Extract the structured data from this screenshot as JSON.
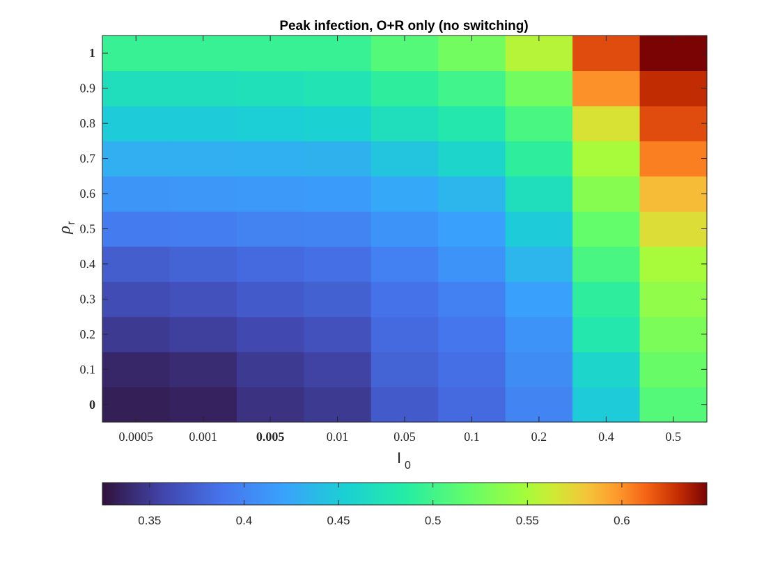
{
  "chart_data": {
    "type": "heatmap",
    "title": "Peak infection, O+R only (no switching)",
    "xlabel": {
      "main": "I",
      "sub": "0"
    },
    "ylabel": {
      "main": "ρ",
      "sub": "r"
    },
    "x_categories": [
      "0.0005",
      "0.001",
      "0.005",
      "0.01",
      "0.05",
      "0.1",
      "0.2",
      "0.4",
      "0.5"
    ],
    "y_categories": [
      "0",
      "0.1",
      "0.2",
      "0.3",
      "0.4",
      "0.5",
      "0.6",
      "0.7",
      "0.8",
      "0.9",
      "1"
    ],
    "x_bold_index": 2,
    "y_bold_indices": [
      0,
      10
    ],
    "values": [
      [
        0.333,
        0.335,
        0.345,
        0.35,
        0.372,
        0.382,
        0.4,
        0.45,
        0.51
      ],
      [
        0.338,
        0.341,
        0.35,
        0.355,
        0.377,
        0.385,
        0.405,
        0.46,
        0.52
      ],
      [
        0.35,
        0.353,
        0.36,
        0.365,
        0.382,
        0.39,
        0.41,
        0.48,
        0.53
      ],
      [
        0.362,
        0.365,
        0.372,
        0.376,
        0.387,
        0.397,
        0.42,
        0.49,
        0.54
      ],
      [
        0.374,
        0.378,
        0.382,
        0.385,
        0.397,
        0.41,
        0.435,
        0.505,
        0.55
      ],
      [
        0.393,
        0.395,
        0.398,
        0.4,
        0.41,
        0.42,
        0.45,
        0.518,
        0.57
      ],
      [
        0.412,
        0.413,
        0.414,
        0.416,
        0.425,
        0.435,
        0.47,
        0.535,
        0.585
      ],
      [
        0.43,
        0.43,
        0.431,
        0.432,
        0.445,
        0.46,
        0.49,
        0.55,
        0.605
      ],
      [
        0.45,
        0.45,
        0.452,
        0.455,
        0.47,
        0.48,
        0.505,
        0.568,
        0.62
      ],
      [
        0.47,
        0.47,
        0.472,
        0.475,
        0.49,
        0.5,
        0.525,
        0.6,
        0.63
      ],
      [
        0.495,
        0.495,
        0.495,
        0.495,
        0.51,
        0.525,
        0.555,
        0.62,
        0.645
      ]
    ],
    "colorbar": {
      "range": [
        0.325,
        0.645
      ],
      "ticks": [
        0.35,
        0.4,
        0.45,
        0.5,
        0.55,
        0.6
      ],
      "tick_labels": [
        "0.35",
        "0.4",
        "0.45",
        "0.5",
        "0.55",
        "0.6"
      ],
      "orientation": "horizontal",
      "placement": "bottom",
      "colormap": "turbo"
    },
    "grid": false
  }
}
